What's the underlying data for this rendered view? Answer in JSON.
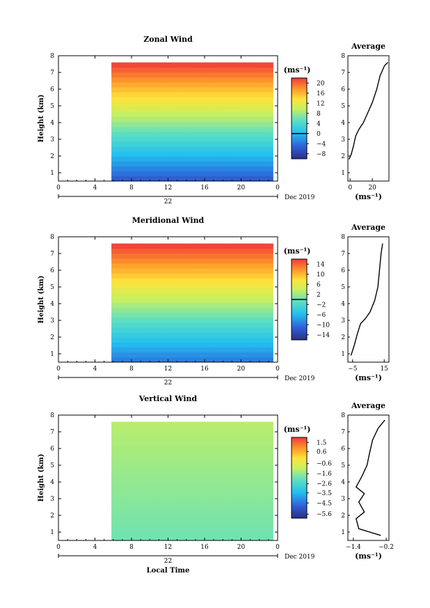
{
  "chart_data": [
    {
      "type": "heatmap",
      "title": "Zonal Wind",
      "xlabel": "",
      "ylabel": "Height (km)",
      "x_ticks": [
        "0",
        "4",
        "8",
        "12",
        "16",
        "20",
        "0"
      ],
      "x_range": [
        0,
        24
      ],
      "y_ticks": [
        "1",
        "2",
        "3",
        "4",
        "5",
        "6",
        "7",
        "8"
      ],
      "y_range": [
        0.5,
        8
      ],
      "day_label": "22",
      "date_label": "Dec 2019",
      "colorbar": {
        "unit": "(ms⁻¹)",
        "min": -10,
        "max": 22,
        "ticks": [
          "20",
          "16",
          "12",
          "8",
          "4",
          "0",
          "−4",
          "−8"
        ],
        "tick_values": [
          20,
          16,
          12,
          8,
          4,
          0,
          -4,
          -8
        ],
        "contour": 0
      },
      "field": {
        "top_km": [
          7.6,
          7.6,
          7.6
        ],
        "start_hour": 5.8,
        "end_hour": 23.5,
        "top_value": 22,
        "low_value": -6
      },
      "average": {
        "title": "Average",
        "xlabel": "(ms⁻¹)",
        "x_ticks": [
          "0",
          "20"
        ],
        "x_tick_values": [
          0,
          20
        ],
        "x_range": [
          -2,
          35
        ],
        "profile": [
          [
            -1,
            1.8
          ],
          [
            1,
            2.1
          ],
          [
            3,
            2.6
          ],
          [
            5,
            3.2
          ],
          [
            8,
            3.6
          ],
          [
            12,
            4.0
          ],
          [
            16,
            4.6
          ],
          [
            20,
            5.2
          ],
          [
            24,
            6.0
          ],
          [
            27,
            6.8
          ],
          [
            31,
            7.4
          ],
          [
            34,
            7.6
          ]
        ]
      }
    },
    {
      "type": "heatmap",
      "title": "Meridional Wind",
      "xlabel": "",
      "ylabel": "Height (km)",
      "x_ticks": [
        "0",
        "4",
        "8",
        "12",
        "16",
        "20",
        "0"
      ],
      "x_range": [
        0,
        24
      ],
      "y_ticks": [
        "1",
        "2",
        "3",
        "4",
        "5",
        "6",
        "7",
        "8"
      ],
      "y_range": [
        0.5,
        8
      ],
      "day_label": "22",
      "date_label": "Dec 2019",
      "colorbar": {
        "unit": "(ms⁻¹)",
        "min": -16,
        "max": 16,
        "ticks": [
          "14",
          "10",
          "6",
          "2",
          "−2",
          "−6",
          "−10",
          "−14"
        ],
        "tick_values": [
          14,
          10,
          6,
          2,
          -2,
          -6,
          -10,
          -14
        ],
        "contour": 0
      },
      "field": {
        "top_km": [
          7.6,
          7.6,
          7.6
        ],
        "start_hour": 5.8,
        "end_hour": 23.5,
        "top_value": 16,
        "low_value": -10
      },
      "average": {
        "title": "Average",
        "xlabel": "(ms⁻¹)",
        "x_ticks": [
          "−5",
          "15"
        ],
        "x_tick_values": [
          -5,
          15
        ],
        "x_range": [
          -8,
          18
        ],
        "profile": [
          [
            -6,
            0.9
          ],
          [
            -4,
            1.5
          ],
          [
            -2,
            2.2
          ],
          [
            0,
            2.8
          ],
          [
            3,
            3.1
          ],
          [
            6,
            3.5
          ],
          [
            9,
            4.2
          ],
          [
            11,
            5.0
          ],
          [
            12,
            6.0
          ],
          [
            13,
            7.0
          ],
          [
            14,
            7.6
          ]
        ]
      }
    },
    {
      "type": "heatmap",
      "title": "Vertical Wind",
      "xlabel": "Local Time",
      "ylabel": "Height (km)",
      "x_ticks": [
        "0",
        "4",
        "8",
        "12",
        "16",
        "20",
        "0"
      ],
      "x_range": [
        0,
        24
      ],
      "y_ticks": [
        "1",
        "2",
        "3",
        "4",
        "5",
        "6",
        "7",
        "8"
      ],
      "y_range": [
        0.5,
        8
      ],
      "day_label": "22",
      "date_label": "Dec 2019",
      "colorbar": {
        "unit": "(ms⁻¹)",
        "min": -6,
        "max": 2,
        "ticks": [
          "1.5",
          "0.6",
          "−0.6",
          "−1.6",
          "−2.6",
          "−3.5",
          "−4.5",
          "−5.6"
        ],
        "tick_values": [
          1.5,
          0.6,
          -0.6,
          -1.6,
          -2.6,
          -3.5,
          -4.5,
          -5.6
        ]
      },
      "field": {
        "top_km": [
          7.6,
          7.6,
          7.6
        ],
        "start_hour": 5.8,
        "end_hour": 23.5,
        "top_value": -1.2,
        "low_value": -2.0
      },
      "average": {
        "title": "Average",
        "xlabel": "(ms⁻¹)",
        "x_ticks": [
          "−1.4",
          "−0.2"
        ],
        "x_tick_values": [
          -1.4,
          -0.2
        ],
        "x_range": [
          -1.6,
          -0.1
        ],
        "profile": [
          [
            -0.4,
            0.8
          ],
          [
            -1.2,
            1.2
          ],
          [
            -1.3,
            1.8
          ],
          [
            -1.0,
            2.2
          ],
          [
            -1.2,
            2.8
          ],
          [
            -1.0,
            3.3
          ],
          [
            -1.3,
            3.7
          ],
          [
            -1.1,
            4.3
          ],
          [
            -0.9,
            5.0
          ],
          [
            -0.8,
            5.8
          ],
          [
            -0.7,
            6.5
          ],
          [
            -0.5,
            7.2
          ],
          [
            -0.25,
            7.7
          ]
        ]
      }
    }
  ]
}
